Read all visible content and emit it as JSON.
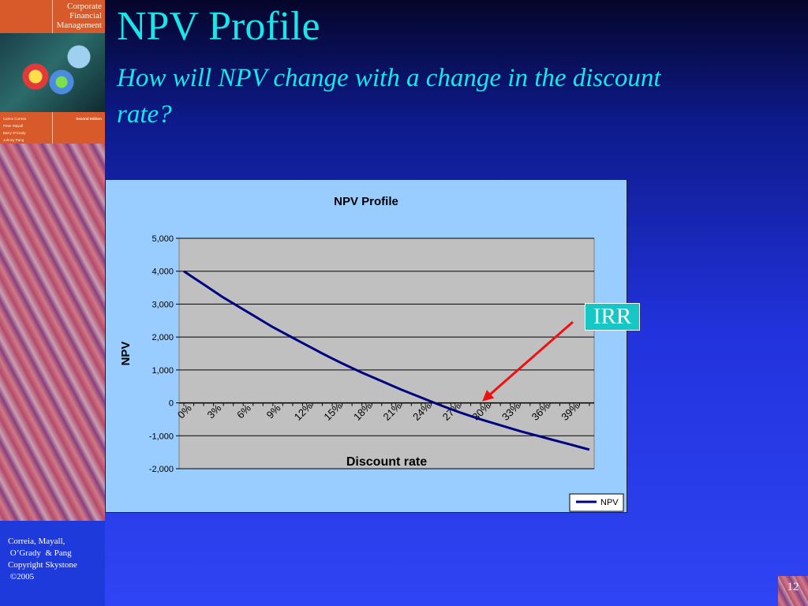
{
  "slide": {
    "title": "NPV Profile",
    "subtitle": "How will NPV change with a change in the discount rate?",
    "callout": "IRR",
    "number": "12",
    "footer": [
      "Correia, Mayall,",
      " O’Grady  & Pang",
      "Copyright Skystone",
      " ©2005"
    ]
  },
  "book": {
    "title_lines": [
      "Corporate",
      "Financial",
      "Management"
    ],
    "authors": [
      "Carlos Correia",
      "Peter Mayall",
      "Barry O'Grady",
      "Johnny Pang"
    ],
    "edition": "Second Edition"
  },
  "colors": {
    "title": "#17e6ea",
    "plot_area": "#c0c0c0",
    "chart_area": "#99ccff",
    "series_line": "#000080",
    "callout_arrow": "#ee1111",
    "callout_box": "#17c7c6"
  },
  "chart_data": {
    "type": "line",
    "title": "NPV Profile",
    "xlabel": "Discount rate",
    "ylabel": "NPV",
    "x": [
      0,
      1,
      2,
      3,
      4,
      5,
      6,
      7,
      8,
      9,
      10,
      11,
      12,
      13,
      14,
      15,
      16,
      17,
      18,
      19,
      20,
      21,
      22,
      23,
      24,
      25,
      26,
      27,
      28,
      29,
      30,
      31,
      32,
      33,
      34,
      35,
      36,
      37,
      38,
      39,
      40,
      41
    ],
    "x_tick_labels": [
      "0%",
      "3%",
      "6%",
      "9%",
      "12%",
      "15%",
      "18%",
      "21%",
      "24%",
      "27%",
      "30%",
      "33%",
      "36%",
      "39%"
    ],
    "x_tick_values": [
      0,
      3,
      6,
      9,
      12,
      15,
      18,
      21,
      24,
      27,
      30,
      33,
      36,
      39
    ],
    "series": [
      {
        "name": "NPV",
        "values": [
          4000,
          3800,
          3600,
          3400,
          3200,
          3020,
          2840,
          2660,
          2480,
          2300,
          2140,
          1980,
          1820,
          1660,
          1500,
          1350,
          1200,
          1060,
          920,
          790,
          660,
          530,
          400,
          280,
          160,
          40,
          -80,
          -190,
          -300,
          -400,
          -500,
          -590,
          -680,
          -770,
          -860,
          -940,
          -1020,
          -1100,
          -1180,
          -1260,
          -1340,
          -1420
        ]
      }
    ],
    "ylim": [
      -2000,
      5000
    ],
    "y_ticks": [
      5000,
      4000,
      3000,
      2000,
      1000,
      0,
      -1000,
      -2000
    ],
    "y_tick_labels": [
      "5,000",
      "4,000",
      "3,000",
      "2,000",
      "1,000",
      "0",
      "-1,000",
      "-2,000"
    ],
    "grid": true,
    "legend": "bottom-right",
    "annotations": [
      {
        "text": "IRR",
        "x": 30,
        "y": 0
      }
    ]
  }
}
